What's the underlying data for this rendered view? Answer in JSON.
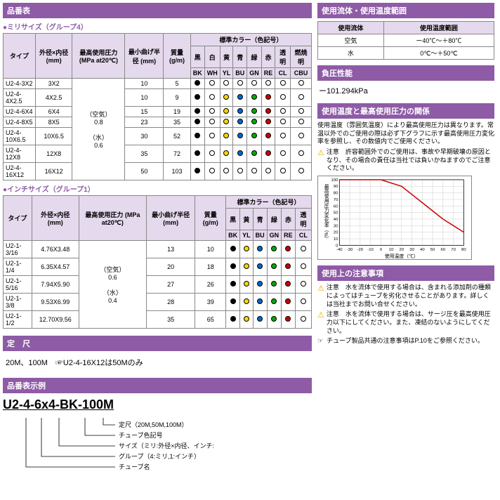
{
  "headers": {
    "part_table": "品番表",
    "std_length": "定　尺",
    "part_example": "品番表示例",
    "fluid_temp": "使用流体・使用温度範囲",
    "neg_pressure": "負圧性能",
    "temp_pressure": "使用温度と最高使用圧力の関係",
    "usage_notes": "使用上の注意事項"
  },
  "sub": {
    "mm_size": "●ミリサイズ（グループ4）",
    "inch_size": "●インチサイズ（グループ1）"
  },
  "tbl_headers": {
    "type": "タイプ",
    "od_id": "外径×内径\n(mm)",
    "max_pressure": "最高使用圧力\n(MPa at20℃)",
    "min_bend": "最小曲げ半径\n(mm)",
    "mass": "質量\n(g/m)",
    "std_color": "標準カラー（色記号）",
    "colors_jp": [
      "黒",
      "白",
      "黄",
      "青",
      "緑",
      "赤",
      "透明",
      "燃焼明"
    ],
    "colors_code": [
      "BK",
      "WH",
      "YL",
      "BU",
      "GN",
      "RE",
      "CL",
      "CBU"
    ],
    "colors_jp2": [
      "黒",
      "黄",
      "青",
      "緑",
      "赤",
      "透明"
    ],
    "colors_code2": [
      "BK",
      "YL",
      "BU",
      "GN",
      "RE",
      "CL"
    ]
  },
  "pressure_mm": "（空気）\n0.8\n\n（水）\n0.6",
  "pressure_in": "（空気）\n0.6\n\n（水）\n0.4",
  "mm_rows": [
    {
      "type": "U2-4-3X2",
      "size": "3X2",
      "bend": "10",
      "mass": "5",
      "c": [
        1,
        0,
        0,
        0,
        0,
        0,
        0,
        0
      ]
    },
    {
      "type": "U2-4-4X2.5",
      "size": "4X2.5",
      "bend": "10",
      "mass": "9",
      "c": [
        1,
        1,
        1,
        1,
        1,
        1,
        1,
        1
      ]
    },
    {
      "type": "U2-4-6X4",
      "size": "6X4",
      "bend": "15",
      "mass": "19",
      "c": [
        1,
        1,
        1,
        1,
        1,
        1,
        1,
        1
      ]
    },
    {
      "type": "U2-4-8X5",
      "size": "8X5",
      "bend": "23",
      "mass": "35",
      "c": [
        1,
        1,
        1,
        1,
        1,
        1,
        1,
        1
      ]
    },
    {
      "type": "U2-4-10X6.5",
      "size": "10X6.5",
      "bend": "30",
      "mass": "52",
      "c": [
        1,
        1,
        1,
        1,
        1,
        1,
        1,
        1
      ]
    },
    {
      "type": "U2-4-12X8",
      "size": "12X8",
      "bend": "35",
      "mass": "72",
      "c": [
        1,
        1,
        1,
        1,
        1,
        1,
        1,
        1
      ]
    },
    {
      "type": "U2-4-16X12",
      "size": "16X12",
      "bend": "50",
      "mass": "103",
      "c": [
        1,
        0,
        0,
        0,
        0,
        0,
        0,
        0
      ]
    }
  ],
  "in_rows": [
    {
      "type": "U2-1-3/16",
      "size": "4.76X3.48",
      "bend": "13",
      "mass": "10",
      "c": [
        1,
        1,
        1,
        1,
        1,
        1
      ]
    },
    {
      "type": "U2-1-1/4",
      "size": "6.35X4.57",
      "bend": "20",
      "mass": "18",
      "c": [
        1,
        1,
        1,
        1,
        1,
        1
      ]
    },
    {
      "type": "U2-1-5/16",
      "size": "7.94X5.90",
      "bend": "27",
      "mass": "26",
      "c": [
        1,
        1,
        1,
        1,
        1,
        1
      ]
    },
    {
      "type": "U2-1-3/8",
      "size": "9.53X6.99",
      "bend": "28",
      "mass": "39",
      "c": [
        1,
        1,
        1,
        1,
        1,
        1
      ]
    },
    {
      "type": "U2-1-1/2",
      "size": "12.70X9.56",
      "bend": "35",
      "mass": "65",
      "c": [
        1,
        1,
        1,
        1,
        1,
        1
      ]
    }
  ],
  "std_length_text": "20M、100M　☞U2-4-16X12は50Mのみ",
  "part_example_num": "U2-4-6x4-BK-100M",
  "part_labels": {
    "l1": "定尺（20M,50M,100M）",
    "l2": "チューブ色記号",
    "l3": "サイズ（ミリ:外径×内径、インチ:外径）",
    "l4": "グループ（4:ミリ,1:インチ）",
    "l5": "チューブ名"
  },
  "fluid_table": {
    "h1": "使用流体",
    "h2": "使用温度範囲",
    "r1f": "空気",
    "r1t": "ー40℃～＋80℃",
    "r2f": "水",
    "r2t": "0℃～＋50℃"
  },
  "neg_pressure_val": "ー101.294kPa",
  "temp_pressure_note": "使用温度（雰囲気温度）により最高使用圧力は異なります。常温以外でのご使用の際は必ず下グラフに示す最高使用圧力変化率を参照し、その数値内でご使用ください。",
  "caution1": "注意　許容範囲外でのご使用は、事故や早期破壊の原因となり、その場合の責任は当社では負いかねますのでご注意ください。",
  "chart": {
    "ylabel": "最高使用圧力変化率（%）",
    "xlabel": "使用温度（℃）",
    "yticks": [
      0,
      10,
      20,
      30,
      40,
      50,
      60,
      70,
      80,
      90,
      100
    ],
    "xticks": [
      -40,
      -30,
      -20,
      -10,
      0,
      10,
      20,
      30,
      40,
      50,
      60,
      70,
      80
    ],
    "line_color": "#cc0000",
    "grid_color": "#ccc",
    "points": [
      [
        -40,
        100
      ],
      [
        0,
        100
      ],
      [
        20,
        90
      ],
      [
        40,
        65
      ],
      [
        60,
        40
      ],
      [
        80,
        20
      ]
    ]
  },
  "caution2": "注意　水を流体で使用する場合は、含まれる添加剤の種類によってはチューブを劣化させることがあります。詳しくは当社までお問い合せください。",
  "caution3": "注意　水を流体で使用する場合は、サージ圧を最高使用圧力以下にしてください。また、凍結のないようにしてください。",
  "caution4": "チューブ製品共通の注意事項はP.10をご参照ください。"
}
